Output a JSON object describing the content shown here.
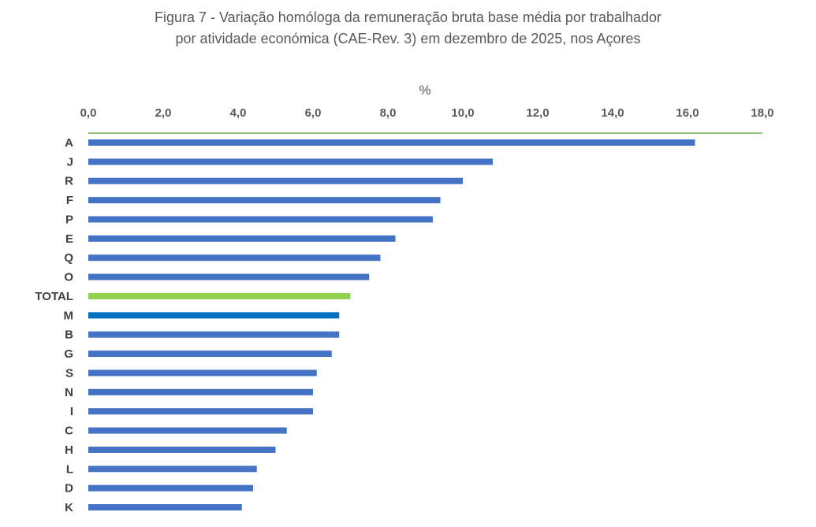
{
  "chart_data": {
    "type": "bar",
    "orientation": "horizontal",
    "title_line1": "Figura 7 - Variação homóloga da remuneração bruta base média por trabalhador",
    "title_line2": "por atividade económica (CAE-Rev. 3) em dezembro de 2025, nos Açores",
    "xlabel": "%",
    "xlim": [
      0,
      18
    ],
    "xticks": [
      "0,0",
      "2,0",
      "4,0",
      "6,0",
      "8,0",
      "10,0",
      "12,0",
      "14,0",
      "16,0",
      "18,0"
    ],
    "categories": [
      "A",
      "J",
      "R",
      "F",
      "P",
      "E",
      "Q",
      "O",
      "TOTAL",
      "M",
      "B",
      "G",
      "S",
      "N",
      "I",
      "C",
      "H",
      "L",
      "D",
      "K"
    ],
    "values": [
      16.2,
      10.8,
      10.0,
      9.4,
      9.2,
      8.2,
      7.8,
      7.5,
      7.0,
      6.7,
      6.7,
      6.5,
      6.1,
      6.0,
      6.0,
      5.3,
      5.0,
      4.5,
      4.4,
      4.1
    ],
    "colors": {
      "default": "#4472C4",
      "TOTAL": "#92D050",
      "M": "#0070C0",
      "axis": "#70AD47"
    },
    "grid": false
  }
}
